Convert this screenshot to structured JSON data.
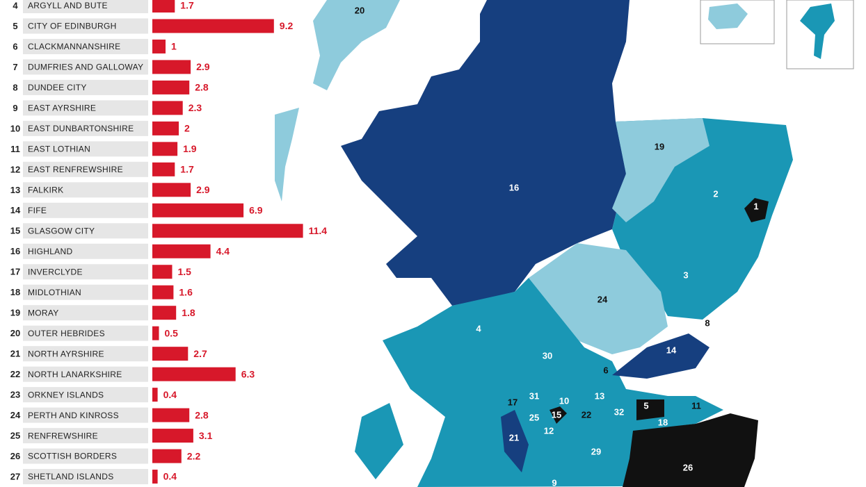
{
  "chart_data": {
    "type": "bar",
    "orientation": "horizontal",
    "color": "#d7182a",
    "ranks": [
      "4",
      "5",
      "6",
      "7",
      "8",
      "9",
      "10",
      "11",
      "12",
      "13",
      "14",
      "15",
      "16",
      "17",
      "18",
      "19",
      "20",
      "21",
      "22",
      "23",
      "24",
      "25",
      "26",
      "27"
    ],
    "categories": [
      "ARGYLL AND BUTE",
      "CITY OF EDINBURGH",
      "CLACKMANNANSHIRE",
      "DUMFRIES AND GALLOWAY",
      "DUNDEE CITY",
      "EAST AYRSHIRE",
      "EAST DUNBARTONSHIRE",
      "EAST LOTHIAN",
      "EAST RENFREWSHIRE",
      "FALKIRK",
      "FIFE",
      "GLASGOW CITY",
      "HIGHLAND",
      "INVERCLYDE",
      "MIDLOTHIAN",
      "MORAY",
      "OUTER HEBRIDES",
      "NORTH AYRSHIRE",
      "NORTH LANARKSHIRE",
      "ORKNEY ISLANDS",
      "PERTH AND KINROSS",
      "RENFREWSHIRE",
      "SCOTTISH BORDERS",
      "SHETLAND ISLANDS"
    ],
    "values": [
      1.7,
      9.2,
      1,
      2.9,
      2.8,
      2.3,
      2,
      1.9,
      1.7,
      2.9,
      6.9,
      11.4,
      4.4,
      1.5,
      1.6,
      1.8,
      0.5,
      2.7,
      6.3,
      0.4,
      2.8,
      3.1,
      2.2,
      0.4
    ]
  },
  "map": {
    "labels": [
      "20",
      "16",
      "19",
      "2",
      "1",
      "3",
      "24",
      "8",
      "4",
      "14",
      "30",
      "6",
      "13",
      "5",
      "11",
      "17",
      "31",
      "10",
      "15",
      "22",
      "32",
      "18",
      "25",
      "12",
      "21",
      "29",
      "26",
      "9"
    ]
  }
}
